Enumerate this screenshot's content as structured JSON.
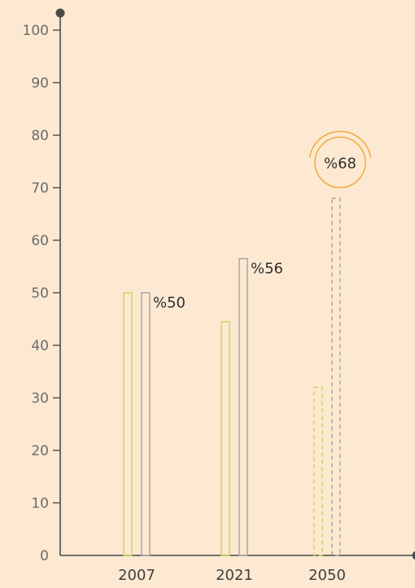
{
  "chart_data": {
    "type": "bar",
    "categories": [
      "2007",
      "2021",
      "2050"
    ],
    "series": [
      {
        "values": [
          50,
          44.5,
          32
        ],
        "projected": [
          false,
          false,
          true
        ],
        "color": "#c9d85a"
      },
      {
        "values": [
          50,
          56.5,
          68
        ],
        "projected": [
          false,
          false,
          true
        ],
        "color": "#a7a7a7"
      }
    ],
    "data_labels": [
      "%50",
      "%56",
      "%68"
    ],
    "highlighted_label_index": 2,
    "highlight_color": "#f0a93a",
    "ylim": [
      0,
      100
    ],
    "yticks": [
      0,
      10,
      20,
      30,
      40,
      50,
      60,
      70,
      80,
      90,
      100
    ],
    "ytick_labels": [
      "0",
      "10",
      "20",
      "30",
      "40",
      "50",
      "60",
      "70",
      "80",
      "90",
      "100"
    ],
    "axis_color": "#4a4a4a",
    "grid": false,
    "legend": "none"
  }
}
